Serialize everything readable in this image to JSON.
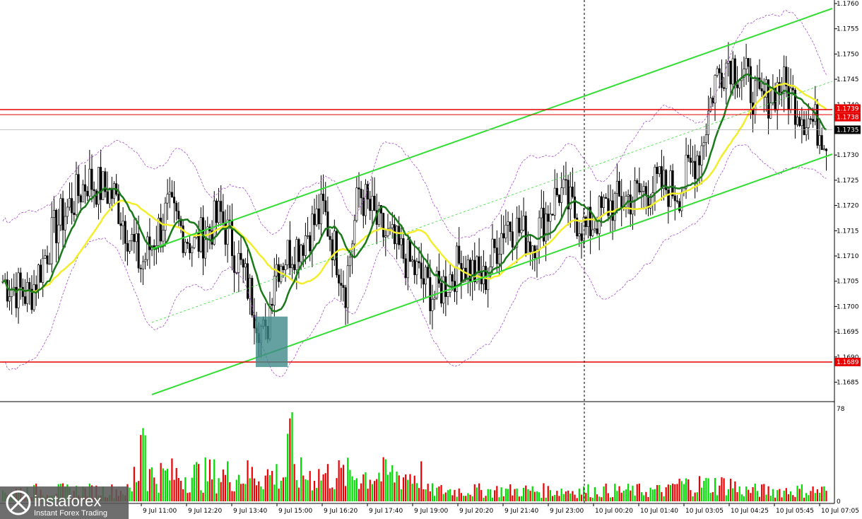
{
  "chart_data": [
    {
      "type": "candlestick",
      "symbol": "",
      "title": "",
      "y_axis": {
        "range": [
          1.168,
          1.176
        ],
        "ticks": [
          "1.1760",
          "1.1755",
          "1.1750",
          "1.1745",
          "1.1740",
          "1.1735",
          "1.1730",
          "1.1725",
          "1.1720",
          "1.1715",
          "1.1710",
          "1.1705",
          "1.1700",
          "1.1695",
          "1.1690",
          "1.1685"
        ]
      },
      "x_axis": {
        "tick_labels": [
          "9 Jul 11:00",
          "9 Jul 12:20",
          "9 Jul 13:40",
          "9 Jul 15:00",
          "9 Jul 16:20",
          "9 Jul 17:40",
          "9 Jul 19:00",
          "9 Jul 20:20",
          "9 Jul 21:40",
          "9 Jul 23:00",
          "10 Jul 00:20",
          "10 Jul 01:40",
          "10 Jul 03:05",
          "10 Jul 04:25",
          "10 Jul 05:45",
          "10 Jul 07:05"
        ]
      },
      "grid": false,
      "price_tags": {
        "current": "1.1735",
        "resistance_a": "1.1739",
        "resistance_b": "1.1738",
        "support": "1.1689"
      },
      "colors": {
        "bull_body": "#ffffff",
        "bear_body": "#000000",
        "wick": "#000000",
        "ma_fast": "#1a7a1a",
        "ma_slow": "#f2ee2a",
        "channel": "#33dd33",
        "bands": "#a64ec9",
        "level": "#e60000",
        "highlight": "#3e8a8a"
      },
      "annotations": {
        "horizontal_levels": [
          1.1739,
          1.1738,
          1.1689
        ],
        "highlight_zone": {
          "price_from": 1.1688,
          "price_to": 1.1698,
          "time_from": "9 Jul 14:30",
          "time_to": "9 Jul 15:00"
        },
        "vertical_marker": "10 Jul 00:00"
      }
    },
    {
      "type": "bar",
      "title": "",
      "y_axis": {
        "range": [
          0,
          78
        ],
        "ticks": [
          "78",
          "0"
        ]
      },
      "colors": {
        "up": "#00dd00",
        "down": "#ee0000"
      }
    }
  ],
  "logo": {
    "brand": "instaforex",
    "tagline": "Instant Forex Trading",
    "icon": "instaforex-logo-icon"
  }
}
